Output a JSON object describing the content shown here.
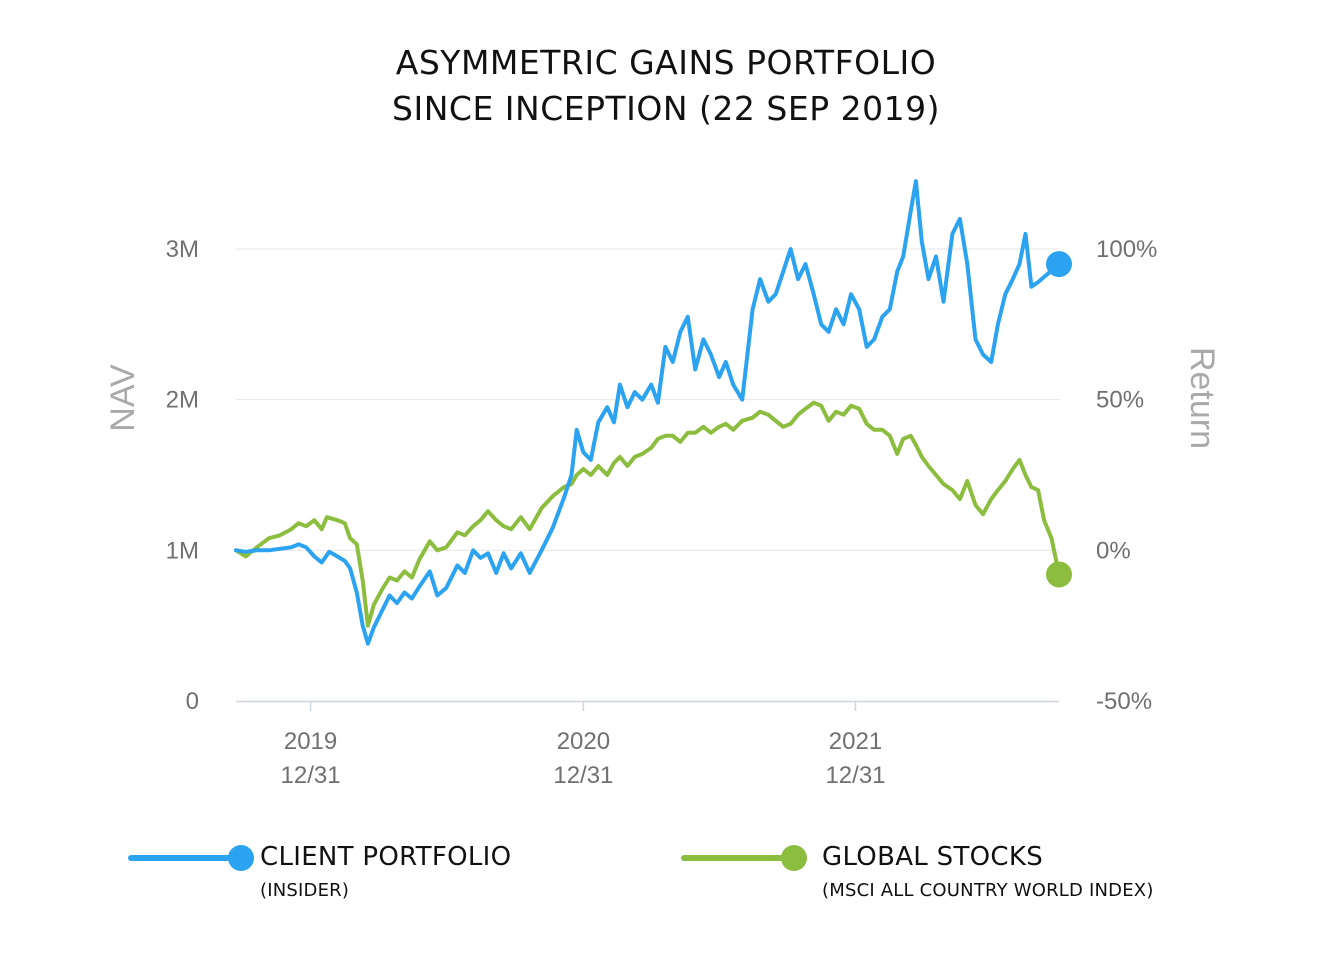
{
  "title": {
    "line1": "ASYMMETRIC GAINS PORTFOLIO",
    "line2": "SINCE INCEPTION (22 SEP 2019)"
  },
  "chart_data": {
    "type": "line",
    "left_axis": {
      "label": "NAV",
      "ticks": [
        0,
        1000000,
        2000000,
        3000000
      ],
      "tick_labels": [
        "0",
        "1M",
        "2M",
        "3M"
      ],
      "range": [
        0,
        3000000
      ]
    },
    "right_axis": {
      "label": "Return",
      "tick_labels": [
        "-50%",
        "0%",
        "50%",
        "100%"
      ],
      "range": [
        -50,
        100
      ]
    },
    "x_axis": {
      "range": [
        "2019-09-22",
        "2022-09-30"
      ],
      "ticks": [
        "2019-12-31",
        "2020-12-31",
        "2021-12-31"
      ],
      "tick_labels": [
        [
          "2019",
          "12/31"
        ],
        [
          "2020",
          "12/31"
        ],
        [
          "2021",
          "12/31"
        ]
      ]
    },
    "grid": true,
    "series": [
      {
        "name": "CLIENT PORTFOLIO",
        "subtitle": "(INSIDER)",
        "color": "#2ba3f0",
        "axis": "left",
        "points": [
          [
            "2019-09-22",
            1000000
          ],
          [
            "2019-10-05",
            990000
          ],
          [
            "2019-10-20",
            1000000
          ],
          [
            "2019-11-05",
            1000000
          ],
          [
            "2019-11-20",
            1010000
          ],
          [
            "2019-12-05",
            1020000
          ],
          [
            "2019-12-15",
            1040000
          ],
          [
            "2019-12-25",
            1020000
          ],
          [
            "2020-01-05",
            960000
          ],
          [
            "2020-01-15",
            920000
          ],
          [
            "2020-01-25",
            990000
          ],
          [
            "2020-02-05",
            960000
          ],
          [
            "2020-02-15",
            930000
          ],
          [
            "2020-02-22",
            880000
          ],
          [
            "2020-03-02",
            720000
          ],
          [
            "2020-03-10",
            500000
          ],
          [
            "2020-03-17",
            380000
          ],
          [
            "2020-03-25",
            490000
          ],
          [
            "2020-04-05",
            600000
          ],
          [
            "2020-04-15",
            700000
          ],
          [
            "2020-04-25",
            650000
          ],
          [
            "2020-05-05",
            720000
          ],
          [
            "2020-05-15",
            680000
          ],
          [
            "2020-05-25",
            760000
          ],
          [
            "2020-06-08",
            860000
          ],
          [
            "2020-06-18",
            700000
          ],
          [
            "2020-06-30",
            750000
          ],
          [
            "2020-07-15",
            900000
          ],
          [
            "2020-07-25",
            850000
          ],
          [
            "2020-08-05",
            1000000
          ],
          [
            "2020-08-15",
            950000
          ],
          [
            "2020-08-25",
            980000
          ],
          [
            "2020-09-05",
            850000
          ],
          [
            "2020-09-15",
            980000
          ],
          [
            "2020-09-25",
            880000
          ],
          [
            "2020-10-08",
            980000
          ],
          [
            "2020-10-20",
            850000
          ],
          [
            "2020-11-05",
            1000000
          ],
          [
            "2020-11-20",
            1150000
          ],
          [
            "2020-12-05",
            1350000
          ],
          [
            "2020-12-15",
            1500000
          ],
          [
            "2020-12-22",
            1800000
          ],
          [
            "2020-12-31",
            1650000
          ],
          [
            "2021-01-10",
            1600000
          ],
          [
            "2021-01-20",
            1850000
          ],
          [
            "2021-02-01",
            1950000
          ],
          [
            "2021-02-10",
            1850000
          ],
          [
            "2021-02-18",
            2100000
          ],
          [
            "2021-02-28",
            1950000
          ],
          [
            "2021-03-10",
            2050000
          ],
          [
            "2021-03-20",
            2000000
          ],
          [
            "2021-04-01",
            2100000
          ],
          [
            "2021-04-10",
            1980000
          ],
          [
            "2021-04-20",
            2350000
          ],
          [
            "2021-04-30",
            2250000
          ],
          [
            "2021-05-10",
            2450000
          ],
          [
            "2021-05-20",
            2550000
          ],
          [
            "2021-05-30",
            2200000
          ],
          [
            "2021-06-10",
            2400000
          ],
          [
            "2021-06-20",
            2300000
          ],
          [
            "2021-07-01",
            2150000
          ],
          [
            "2021-07-10",
            2250000
          ],
          [
            "2021-07-20",
            2100000
          ],
          [
            "2021-08-01",
            2000000
          ],
          [
            "2021-08-15",
            2600000
          ],
          [
            "2021-08-25",
            2800000
          ],
          [
            "2021-09-05",
            2650000
          ],
          [
            "2021-09-15",
            2700000
          ],
          [
            "2021-09-25",
            2850000
          ],
          [
            "2021-10-05",
            3000000
          ],
          [
            "2021-10-15",
            2800000
          ],
          [
            "2021-10-25",
            2900000
          ],
          [
            "2021-11-05",
            2700000
          ],
          [
            "2021-11-15",
            2500000
          ],
          [
            "2021-11-25",
            2450000
          ],
          [
            "2021-12-05",
            2600000
          ],
          [
            "2021-12-15",
            2500000
          ],
          [
            "2021-12-25",
            2700000
          ],
          [
            "2022-01-05",
            2600000
          ],
          [
            "2022-01-15",
            2350000
          ],
          [
            "2022-01-25",
            2400000
          ],
          [
            "2022-02-05",
            2550000
          ],
          [
            "2022-02-15",
            2600000
          ],
          [
            "2022-02-25",
            2850000
          ],
          [
            "2022-03-05",
            2950000
          ],
          [
            "2022-03-15",
            3250000
          ],
          [
            "2022-03-22",
            3450000
          ],
          [
            "2022-03-30",
            3050000
          ],
          [
            "2022-04-08",
            2800000
          ],
          [
            "2022-04-18",
            2950000
          ],
          [
            "2022-04-28",
            2650000
          ],
          [
            "2022-05-10",
            3100000
          ],
          [
            "2022-05-20",
            3200000
          ],
          [
            "2022-05-30",
            2900000
          ],
          [
            "2022-06-10",
            2400000
          ],
          [
            "2022-06-20",
            2300000
          ],
          [
            "2022-07-01",
            2250000
          ],
          [
            "2022-07-10",
            2500000
          ],
          [
            "2022-07-20",
            2700000
          ],
          [
            "2022-07-30",
            2800000
          ],
          [
            "2022-08-08",
            2900000
          ],
          [
            "2022-08-16",
            3100000
          ],
          [
            "2022-08-24",
            2750000
          ],
          [
            "2022-09-02",
            2780000
          ],
          [
            "2022-09-30",
            2900000
          ]
        ]
      },
      {
        "name": "GLOBAL STOCKS",
        "subtitle": "(MSCI ALL COUNTRY WORLD INDEX)",
        "color": "#8cbd3f",
        "axis": "right",
        "points": [
          [
            "2019-09-22",
            0
          ],
          [
            "2019-10-05",
            -2
          ],
          [
            "2019-10-20",
            1
          ],
          [
            "2019-11-05",
            4
          ],
          [
            "2019-11-20",
            5
          ],
          [
            "2019-12-05",
            7
          ],
          [
            "2019-12-15",
            9
          ],
          [
            "2019-12-25",
            8
          ],
          [
            "2020-01-05",
            10
          ],
          [
            "2020-01-15",
            7
          ],
          [
            "2020-01-22",
            11
          ],
          [
            "2020-02-05",
            10
          ],
          [
            "2020-02-15",
            9
          ],
          [
            "2020-02-22",
            4
          ],
          [
            "2020-03-02",
            2
          ],
          [
            "2020-03-10",
            -10
          ],
          [
            "2020-03-17",
            -25
          ],
          [
            "2020-03-25",
            -18
          ],
          [
            "2020-04-05",
            -13
          ],
          [
            "2020-04-15",
            -9
          ],
          [
            "2020-04-25",
            -10
          ],
          [
            "2020-05-05",
            -7
          ],
          [
            "2020-05-15",
            -9
          ],
          [
            "2020-05-25",
            -3
          ],
          [
            "2020-06-08",
            3
          ],
          [
            "2020-06-18",
            0
          ],
          [
            "2020-06-30",
            1
          ],
          [
            "2020-07-15",
            6
          ],
          [
            "2020-07-25",
            5
          ],
          [
            "2020-08-05",
            8
          ],
          [
            "2020-08-15",
            10
          ],
          [
            "2020-08-25",
            13
          ],
          [
            "2020-09-05",
            10
          ],
          [
            "2020-09-15",
            8
          ],
          [
            "2020-09-25",
            7
          ],
          [
            "2020-10-08",
            11
          ],
          [
            "2020-10-20",
            7
          ],
          [
            "2020-11-05",
            14
          ],
          [
            "2020-11-20",
            18
          ],
          [
            "2020-12-05",
            21
          ],
          [
            "2020-12-15",
            22
          ],
          [
            "2020-12-22",
            25
          ],
          [
            "2020-12-31",
            27
          ],
          [
            "2021-01-10",
            25
          ],
          [
            "2021-01-20",
            28
          ],
          [
            "2021-02-01",
            25
          ],
          [
            "2021-02-10",
            29
          ],
          [
            "2021-02-18",
            31
          ],
          [
            "2021-02-28",
            28
          ],
          [
            "2021-03-10",
            31
          ],
          [
            "2021-03-20",
            32
          ],
          [
            "2021-04-01",
            34
          ],
          [
            "2021-04-10",
            37
          ],
          [
            "2021-04-20",
            38
          ],
          [
            "2021-04-30",
            38
          ],
          [
            "2021-05-10",
            36
          ],
          [
            "2021-05-20",
            39
          ],
          [
            "2021-05-30",
            39
          ],
          [
            "2021-06-10",
            41
          ],
          [
            "2021-06-20",
            39
          ],
          [
            "2021-07-01",
            41
          ],
          [
            "2021-07-10",
            42
          ],
          [
            "2021-07-20",
            40
          ],
          [
            "2021-08-01",
            43
          ],
          [
            "2021-08-15",
            44
          ],
          [
            "2021-08-25",
            46
          ],
          [
            "2021-09-05",
            45
          ],
          [
            "2021-09-15",
            43
          ],
          [
            "2021-09-25",
            41
          ],
          [
            "2021-10-05",
            42
          ],
          [
            "2021-10-15",
            45
          ],
          [
            "2021-10-25",
            47
          ],
          [
            "2021-11-05",
            49
          ],
          [
            "2021-11-15",
            48
          ],
          [
            "2021-11-25",
            43
          ],
          [
            "2021-12-05",
            46
          ],
          [
            "2021-12-15",
            45
          ],
          [
            "2021-12-25",
            48
          ],
          [
            "2022-01-05",
            47
          ],
          [
            "2022-01-15",
            42
          ],
          [
            "2022-01-25",
            40
          ],
          [
            "2022-02-05",
            40
          ],
          [
            "2022-02-15",
            38
          ],
          [
            "2022-02-25",
            32
          ],
          [
            "2022-03-05",
            37
          ],
          [
            "2022-03-15",
            38
          ],
          [
            "2022-03-22",
            35
          ],
          [
            "2022-03-30",
            31
          ],
          [
            "2022-04-08",
            28
          ],
          [
            "2022-04-18",
            25
          ],
          [
            "2022-04-28",
            22
          ],
          [
            "2022-05-10",
            20
          ],
          [
            "2022-05-20",
            17
          ],
          [
            "2022-05-30",
            23
          ],
          [
            "2022-06-10",
            15
          ],
          [
            "2022-06-20",
            12
          ],
          [
            "2022-07-01",
            17
          ],
          [
            "2022-07-10",
            20
          ],
          [
            "2022-07-20",
            23
          ],
          [
            "2022-07-30",
            27
          ],
          [
            "2022-08-08",
            30
          ],
          [
            "2022-08-16",
            25
          ],
          [
            "2022-08-24",
            21
          ],
          [
            "2022-09-02",
            20
          ],
          [
            "2022-09-10",
            10
          ],
          [
            "2022-09-20",
            4
          ],
          [
            "2022-09-30",
            -8
          ]
        ]
      }
    ]
  }
}
